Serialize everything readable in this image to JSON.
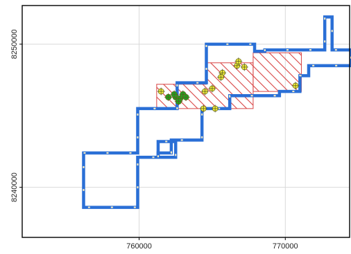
{
  "map": {
    "x_ticks": [
      {
        "value": 760000,
        "label": "760000"
      },
      {
        "value": 770000,
        "label": "770000"
      }
    ],
    "y_ticks": [
      {
        "value": 8240000,
        "label": "8240000"
      },
      {
        "value": 8250000,
        "label": "8250000"
      }
    ],
    "x_range": [
      752000,
      774400
    ],
    "y_range": [
      8236500,
      8252700
    ],
    "grid": true,
    "colors": {
      "background": "#ffffff",
      "panel_border": "#000000",
      "grid": "#d9d9d9",
      "boundary_line": "#2a6fd6",
      "boundary_dash": "#f3e9c2",
      "hatch": "#d84444",
      "point_yellow": "#f2ee3c",
      "point_green": "#1fa51f"
    },
    "boundary_polygon": [
      [
        756200,
        8242400
      ],
      [
        759900,
        8242400
      ],
      [
        759900,
        8245500
      ],
      [
        762600,
        8245500
      ],
      [
        762600,
        8247300
      ],
      [
        764600,
        8247300
      ],
      [
        764600,
        8250000
      ],
      [
        767900,
        8250000
      ],
      [
        767900,
        8249500
      ],
      [
        768600,
        8249500
      ],
      [
        768600,
        8249600
      ],
      [
        772700,
        8249600
      ],
      [
        772700,
        8251900
      ],
      [
        773200,
        8251900
      ],
      [
        773200,
        8249600
      ],
      [
        774500,
        8249600
      ],
      [
        774500,
        8248500
      ],
      [
        771600,
        8248500
      ],
      [
        771600,
        8247800
      ],
      [
        771000,
        8247800
      ],
      [
        771000,
        8246700
      ],
      [
        769600,
        8246700
      ],
      [
        769600,
        8246400
      ],
      [
        766200,
        8246400
      ],
      [
        766200,
        8245500
      ],
      [
        764300,
        8245500
      ],
      [
        764300,
        8243300
      ],
      [
        762200,
        8243300
      ],
      [
        762200,
        8242400
      ],
      [
        761300,
        8242400
      ],
      [
        761300,
        8242100
      ],
      [
        759900,
        8242100
      ],
      [
        759900,
        8238600
      ],
      [
        756200,
        8238600
      ]
    ],
    "inner_polygon": [
      [
        761300,
        8242100
      ],
      [
        761300,
        8243200
      ],
      [
        762500,
        8243200
      ],
      [
        762500,
        8242100
      ]
    ],
    "hatched_areas": [
      [
        [
          761200,
          8245500
        ],
        [
          761200,
          8247200
        ],
        [
          764600,
          8247200
        ],
        [
          764600,
          8248700
        ],
        [
          767800,
          8248700
        ],
        [
          767800,
          8245500
        ]
      ],
      [
        [
          767800,
          8246700
        ],
        [
          767800,
          8249400
        ],
        [
          771100,
          8249400
        ],
        [
          771100,
          8246700
        ]
      ]
    ],
    "yellow_points": [
      [
        761500,
        8246700
      ],
      [
        764400,
        8245500
      ],
      [
        765200,
        8245500
      ],
      [
        764500,
        8246700
      ],
      [
        765000,
        8246900
      ],
      [
        765700,
        8248000
      ],
      [
        765600,
        8247700
      ],
      [
        766700,
        8248500
      ],
      [
        766800,
        8248800
      ],
      [
        767200,
        8248400
      ],
      [
        770700,
        8247100
      ]
    ],
    "green_points": [
      [
        762000,
        8246300
      ],
      [
        762500,
        8246300
      ],
      [
        762800,
        8246200
      ],
      [
        763000,
        8246500
      ],
      [
        762700,
        8246000
      ],
      [
        762400,
        8246500
      ],
      [
        763200,
        8246300
      ]
    ]
  }
}
